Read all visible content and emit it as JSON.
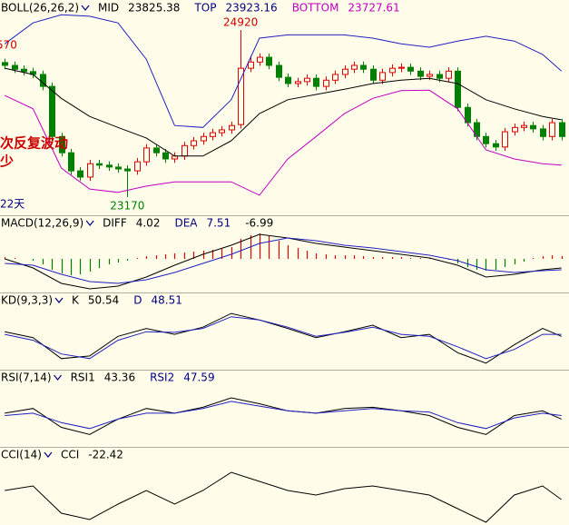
{
  "chart_data": [
    {
      "type": "candlestick",
      "indicator": "BOLL(26,26,2)",
      "readouts": [
        {
          "label": "MID",
          "value": 23825.38,
          "color": "#000000"
        },
        {
          "label": "TOP",
          "value": 23923.16,
          "color": "#000080"
        },
        {
          "label": "BOTTOM",
          "value": 23727.61,
          "color": "#c000c0"
        }
      ],
      "open": [
        24580,
        24550,
        24510,
        24485,
        24455,
        24330,
        23805,
        23635,
        23445,
        23380,
        23520,
        23505,
        23485,
        23465,
        23445,
        23540,
        23685,
        23635,
        23570,
        23600,
        23710,
        23760,
        23805,
        23845,
        23875,
        23930,
        24520,
        24585,
        24635,
        24550,
        24425,
        24360,
        24380,
        24415,
        24330,
        24395,
        24455,
        24510,
        24550,
        24510,
        24395,
        24475,
        24520,
        24530,
        24490,
        24435,
        24455,
        24415,
        24490,
        24110,
        23950,
        23805,
        23730,
        23695,
        23855,
        23900,
        23920,
        23885,
        23805,
        23950
      ],
      "high": [
        24620,
        24590,
        24550,
        24525,
        24495,
        24370,
        23845,
        23675,
        23485,
        23560,
        23560,
        23545,
        23525,
        23505,
        23580,
        23725,
        23725,
        23675,
        23640,
        23750,
        23800,
        23845,
        23885,
        23915,
        23960,
        24920,
        24650,
        24675,
        24675,
        24590,
        24465,
        24420,
        24455,
        24455,
        24435,
        24495,
        24550,
        24590,
        24590,
        24550,
        24515,
        24560,
        24570,
        24570,
        24530,
        24495,
        24495,
        24530,
        24530,
        24150,
        23990,
        23845,
        23770,
        23895,
        23940,
        23960,
        23960,
        23925,
        23990,
        23990
      ],
      "low": [
        24510,
        24470,
        24445,
        24415,
        24290,
        23765,
        23595,
        23405,
        23340,
        23340,
        23465,
        23445,
        23425,
        23170,
        23405,
        23500,
        23595,
        23530,
        23530,
        23560,
        23670,
        23720,
        23765,
        23805,
        23835,
        23890,
        24480,
        24545,
        24510,
        24385,
        24320,
        24320,
        24340,
        24290,
        24290,
        24355,
        24415,
        24470,
        24470,
        24355,
        24355,
        24435,
        24480,
        24450,
        24395,
        24395,
        24375,
        24375,
        24070,
        23910,
        23765,
        23690,
        23655,
        23655,
        23815,
        23860,
        23845,
        23765,
        23765,
        23765
      ],
      "close": [
        24550,
        24510,
        24485,
        24455,
        24330,
        23805,
        23635,
        23445,
        23380,
        23520,
        23505,
        23485,
        23465,
        23445,
        23540,
        23685,
        23635,
        23570,
        23600,
        23710,
        23760,
        23805,
        23845,
        23875,
        23920,
        24520,
        24585,
        24635,
        24550,
        24425,
        24360,
        24380,
        24415,
        24330,
        24395,
        24455,
        24510,
        24550,
        24510,
        24395,
        24475,
        24520,
        24530,
        24490,
        24435,
        24455,
        24415,
        24490,
        24110,
        23950,
        23805,
        23730,
        23695,
        23855,
        23900,
        23920,
        23885,
        23805,
        23950,
        23805
      ],
      "up_color": "#e00000",
      "down_color": "#008000",
      "lines": [
        {
          "color": "#2020c0",
          "x": [
            0,
            3,
            6,
            9,
            12,
            15,
            18,
            21,
            24,
            27,
            30,
            33,
            36,
            39,
            42,
            45,
            48,
            51,
            54,
            57,
            59
          ],
          "values": [
            24775,
            24995,
            25080,
            25065,
            24995,
            24615,
            23920,
            23900,
            24190,
            24835,
            24870,
            24870,
            24870,
            24835,
            24775,
            24740,
            24805,
            24855,
            24805,
            24665,
            24490
          ]
        },
        {
          "color": "#000000",
          "x": [
            0,
            3,
            6,
            9,
            12,
            15,
            18,
            21,
            24,
            27,
            30,
            33,
            36,
            39,
            42,
            45,
            48,
            51,
            54,
            57,
            59
          ],
          "values": [
            24520,
            24455,
            24205,
            24015,
            23900,
            23790,
            23600,
            23600,
            23760,
            24045,
            24190,
            24245,
            24300,
            24360,
            24395,
            24415,
            24360,
            24190,
            24095,
            24015,
            23980
          ]
        },
        {
          "color": "#c000c0",
          "x": [
            0,
            3,
            6,
            9,
            12,
            15,
            18,
            21,
            24,
            27,
            30,
            33,
            36,
            39,
            42,
            45,
            48,
            51,
            54,
            57,
            59
          ],
          "values": [
            24235,
            24095,
            23475,
            23255,
            23220,
            23285,
            23330,
            23330,
            23330,
            23190,
            23570,
            23805,
            24045,
            24205,
            24285,
            24290,
            24095,
            23665,
            23570,
            23520,
            23505
          ]
        }
      ],
      "annotations": [
        {
          "text": "570",
          "color": "#cc0000"
        },
        {
          "text": "次反复波动",
          "color": "#cc0000"
        },
        {
          "text": "少",
          "color": "#cc0000"
        },
        {
          "text": "22天",
          "color": "#000080"
        }
      ],
      "xlim": [
        -0.5,
        59.8
      ],
      "ylim": [
        22980,
        25235
      ]
    },
    {
      "type": "macd",
      "indicator": "MACD(12,26,9)",
      "readouts": [
        {
          "label": "DIFF",
          "value": 4.02,
          "color": "#000000"
        },
        {
          "label": "DEA",
          "value": 7.51,
          "color": "#000080"
        },
        {
          "value": -6.99,
          "color": "#000000"
        }
      ],
      "histogram": [
        2,
        1,
        0,
        -2,
        -6,
        -12,
        -16,
        -18,
        -17,
        -14,
        -10,
        -6,
        -4,
        -2,
        1,
        3,
        4,
        5,
        6,
        7,
        8,
        9,
        10,
        11,
        13,
        22,
        26,
        28,
        25,
        20,
        15,
        12,
        9,
        6,
        5,
        4,
        4,
        4,
        3,
        2,
        2,
        2,
        2,
        1,
        1,
        1,
        0,
        -1,
        -5,
        -9,
        -12,
        -13,
        -12,
        -9,
        -6,
        -3,
        1,
        3,
        4,
        3
      ],
      "up_color": "#e00000",
      "down_color": "#008000",
      "lines": [
        {
          "color": "#000000",
          "x": [
            0,
            3,
            6,
            9,
            12,
            15,
            18,
            21,
            24,
            27,
            30,
            33,
            36,
            39,
            42,
            45,
            48,
            51,
            54,
            57,
            59
          ],
          "values": [
            0,
            -10,
            -27,
            -33,
            -30,
            -20,
            -7,
            5,
            15,
            27,
            23,
            17,
            13,
            9,
            5,
            1,
            -7,
            -20,
            -17,
            -12,
            -10
          ]
        },
        {
          "color": "#2020c0",
          "x": [
            0,
            3,
            6,
            9,
            12,
            15,
            18,
            21,
            24,
            27,
            30,
            33,
            36,
            39,
            42,
            45,
            48,
            51,
            54,
            57,
            59
          ],
          "values": [
            -5,
            -7,
            -17,
            -25,
            -27,
            -23,
            -15,
            -5,
            5,
            17,
            23,
            20,
            15,
            12,
            8,
            4,
            -2,
            -12,
            -15,
            -13,
            -12
          ]
        }
      ],
      "xlim": [
        -0.5,
        59.8
      ],
      "ylim": [
        -37,
        48
      ]
    },
    {
      "type": "line",
      "indicator": "KD(9,3,3)",
      "readouts": [
        {
          "label": "K",
          "value": 50.54,
          "color": "#000000"
        },
        {
          "label": "D",
          "value": 48.51,
          "color": "#000080"
        }
      ],
      "lines": [
        {
          "color": "#000000",
          "x": [
            0,
            3,
            6,
            9,
            12,
            15,
            18,
            21,
            24,
            27,
            30,
            33,
            36,
            39,
            42,
            45,
            48,
            51,
            54,
            57,
            59
          ],
          "values": [
            51,
            42,
            10,
            14,
            44,
            56,
            47,
            58,
            79,
            69,
            56,
            42,
            51,
            61,
            42,
            47,
            19,
            3,
            31,
            56,
            44
          ]
        },
        {
          "color": "#2020c0",
          "x": [
            0,
            3,
            6,
            9,
            12,
            15,
            18,
            21,
            24,
            27,
            30,
            33,
            36,
            39,
            42,
            45,
            48,
            51,
            54,
            57,
            59
          ],
          "values": [
            47,
            38,
            17,
            10,
            38,
            51,
            50,
            56,
            74,
            69,
            58,
            44,
            50,
            58,
            47,
            44,
            28,
            10,
            24,
            47,
            47
          ]
        }
      ],
      "xlim": [
        -0.5,
        59.8
      ],
      "ylim": [
        -7,
        111
      ]
    },
    {
      "type": "line",
      "indicator": "RSI(7,14)",
      "readouts": [
        {
          "label": "RSI1",
          "value": 43.36,
          "color": "#000000"
        },
        {
          "label": "RSI2",
          "value": 47.59,
          "color": "#000080"
        }
      ],
      "lines": [
        {
          "color": "#000000",
          "x": [
            0,
            3,
            6,
            9,
            12,
            15,
            18,
            21,
            24,
            27,
            30,
            33,
            36,
            39,
            42,
            45,
            48,
            51,
            54,
            57,
            59
          ],
          "values": [
            47,
            51,
            35,
            29,
            42,
            51,
            47,
            52,
            60,
            55,
            49,
            47,
            51,
            52,
            49,
            45,
            35,
            29,
            45,
            49,
            42
          ]
        },
        {
          "color": "#2020c0",
          "x": [
            0,
            3,
            6,
            9,
            12,
            15,
            18,
            21,
            24,
            27,
            30,
            33,
            36,
            39,
            42,
            45,
            48,
            51,
            54,
            57,
            59
          ],
          "values": [
            45,
            47,
            39,
            34,
            42,
            47,
            47,
            51,
            57,
            53,
            49,
            47,
            49,
            51,
            49,
            48,
            39,
            34,
            43,
            47,
            45
          ]
        }
      ],
      "xlim": [
        -0.5,
        59.8
      ],
      "ylim": [
        18.5,
        83.8
      ]
    },
    {
      "type": "line",
      "indicator": "CCI(14)",
      "readouts": [
        {
          "label": "CCI",
          "value": -22.42,
          "color": "#000000"
        }
      ],
      "lines": [
        {
          "color": "#000000",
          "x": [
            0,
            3,
            6,
            9,
            12,
            15,
            18,
            21,
            24,
            27,
            30,
            33,
            36,
            39,
            42,
            45,
            48,
            51,
            54,
            57,
            59
          ],
          "values": [
            20,
            40,
            -80,
            -108,
            -40,
            20,
            -40,
            20,
            100,
            60,
            20,
            0,
            28,
            40,
            20,
            0,
            -60,
            -120,
            0,
            40,
            -20
          ]
        }
      ],
      "xlim": [
        -0.5,
        59.8
      ],
      "ylim": [
        -132,
        212
      ]
    }
  ]
}
